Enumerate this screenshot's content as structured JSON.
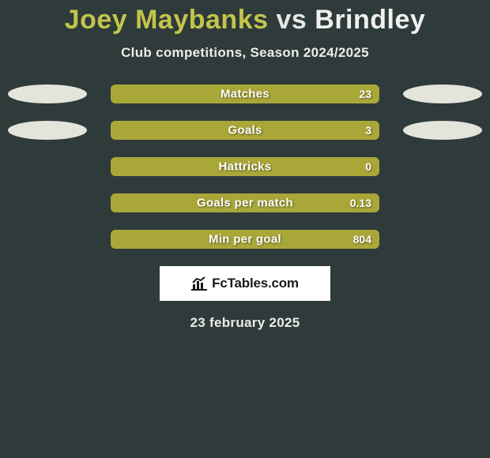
{
  "title": {
    "player_a": "Joey Maybanks",
    "vs": "vs",
    "player_b": "Brindley",
    "color_a": "#c2c54a",
    "color_vs": "#e6e6e6",
    "color_b": "#f0f0ef"
  },
  "subtitle": "Club competitions, Season 2024/2025",
  "background_color": "#2f3a3b",
  "ellipse_colors": {
    "left_active": "#e3e5db",
    "right_active": "#e3e5db",
    "inactive": "transparent"
  },
  "bar_colors": {
    "bg": "#aaa739",
    "fg": "#aaa739",
    "fg_partial": "#aaa739"
  },
  "rows": [
    {
      "label": "Matches",
      "value": "23",
      "fill_pct": 100,
      "left_ellipse": true,
      "right_ellipse": true
    },
    {
      "label": "Goals",
      "value": "3",
      "fill_pct": 100,
      "left_ellipse": true,
      "right_ellipse": true
    },
    {
      "label": "Hattricks",
      "value": "0",
      "fill_pct": 100,
      "left_ellipse": false,
      "right_ellipse": false
    },
    {
      "label": "Goals per match",
      "value": "0.13",
      "fill_pct": 100,
      "left_ellipse": false,
      "right_ellipse": false
    },
    {
      "label": "Min per goal",
      "value": "804",
      "fill_pct": 100,
      "left_ellipse": false,
      "right_ellipse": false
    }
  ],
  "badge": {
    "text": "FcTables.com",
    "bg": "#ffffff",
    "text_color": "#1a1a1a",
    "icon_color": "#1a1a1a"
  },
  "date": "23 february 2025"
}
